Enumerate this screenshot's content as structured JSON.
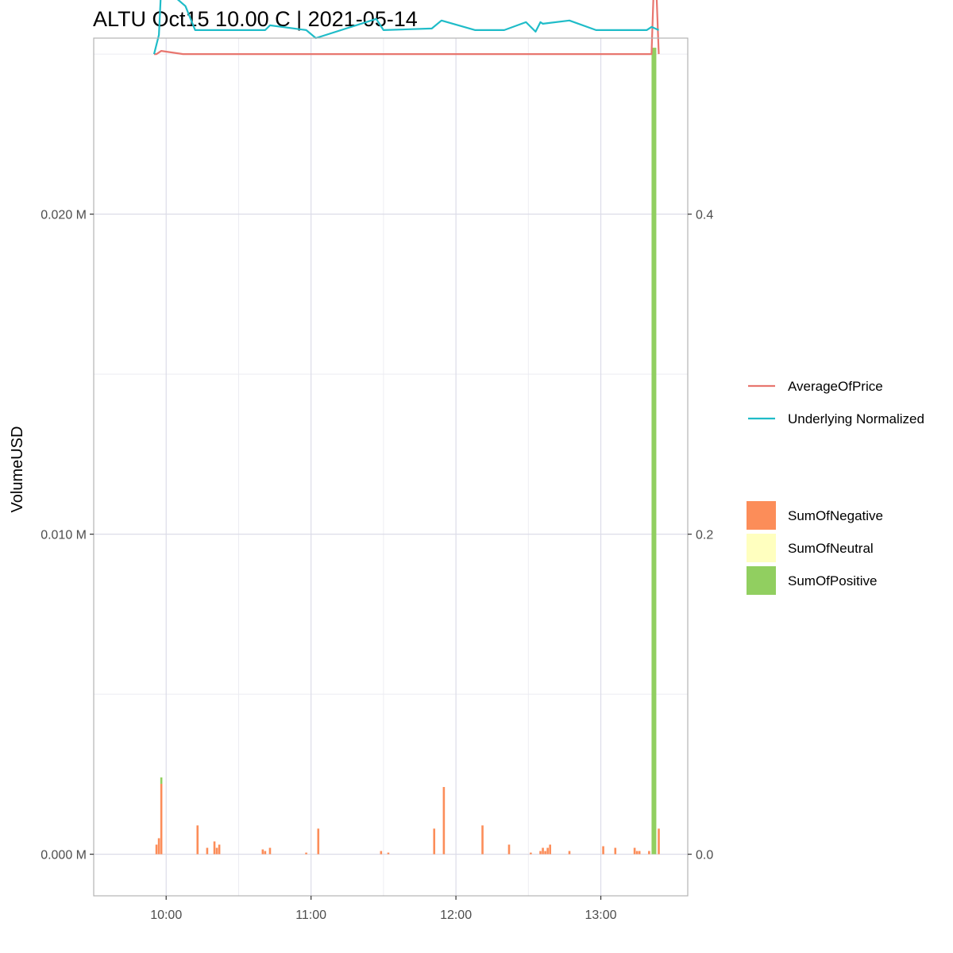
{
  "chart_data": {
    "type": "bar",
    "title": "ALTU Oct15 10.00 C | 2021-05-14",
    "ylabel": "VolumeUSD",
    "y_unit_suffix": " M",
    "xlim": [
      "09:30",
      "13:36"
    ],
    "ylim_left": [
      -0.0013,
      0.0255
    ],
    "ylim_right": [
      -0.026,
      0.51
    ],
    "x_ticks": [
      {
        "x": "10:00",
        "label": "10:00"
      },
      {
        "x": "11:00",
        "label": "11:00"
      },
      {
        "x": "12:00",
        "label": "12:00"
      },
      {
        "x": "13:00",
        "label": "13:00"
      }
    ],
    "y_ticks_left": [
      {
        "value": 0.0,
        "label": "0.000 M"
      },
      {
        "value": 0.01,
        "label": "0.010 M"
      },
      {
        "value": 0.02,
        "label": "0.020 M"
      }
    ],
    "y_ticks_right": [
      {
        "value": 0.0,
        "label": "0.0"
      },
      {
        "value": 0.2,
        "label": "0.2"
      },
      {
        "value": 0.4,
        "label": "0.4"
      }
    ],
    "grid": true,
    "legend_position": "right",
    "colors": {
      "negative": "#fc8d59",
      "neutral": "#ffffbf",
      "positive": "#91cf60",
      "average_price": "#e8766f",
      "underlying": "#1fbcc8",
      "grid_major": "#dcdce8",
      "grid_minor": "#ececf2",
      "panel_border": "#b3b3b3"
    },
    "line_legend": [
      {
        "key": "average_price",
        "label": "AverageOfPrice"
      },
      {
        "key": "underlying",
        "label": "Underlying Normalized"
      }
    ],
    "bar_legend": [
      {
        "key": "negative",
        "label": "SumOfNegative"
      },
      {
        "key": "neutral",
        "label": "SumOfNeutral"
      },
      {
        "key": "positive",
        "label": "SumOfPositive"
      }
    ],
    "bars": {
      "negative": [
        {
          "x": "09:56",
          "value": 0.0003
        },
        {
          "x": "09:57",
          "value": 0.0005
        },
        {
          "x": "09:58",
          "value": 0.0022
        },
        {
          "x": "10:13",
          "value": 0.0009
        },
        {
          "x": "10:17",
          "value": 0.0002
        },
        {
          "x": "10:20",
          "value": 0.0004
        },
        {
          "x": "10:21",
          "value": 0.0002
        },
        {
          "x": "10:22",
          "value": 0.0003
        },
        {
          "x": "10:40",
          "value": 0.00015
        },
        {
          "x": "10:41",
          "value": 0.0001
        },
        {
          "x": "10:43",
          "value": 0.0002
        },
        {
          "x": "10:58",
          "value": 5e-05
        },
        {
          "x": "11:03",
          "value": 0.0008
        },
        {
          "x": "11:29",
          "value": 0.0001
        },
        {
          "x": "11:32",
          "value": 5e-05
        },
        {
          "x": "11:51",
          "value": 0.0008
        },
        {
          "x": "11:55",
          "value": 0.0021
        },
        {
          "x": "12:11",
          "value": 0.0009
        },
        {
          "x": "12:22",
          "value": 0.0003
        },
        {
          "x": "12:31",
          "value": 5e-05
        },
        {
          "x": "12:35",
          "value": 0.0001
        },
        {
          "x": "12:36",
          "value": 0.0002
        },
        {
          "x": "12:37",
          "value": 0.0001
        },
        {
          "x": "12:38",
          "value": 0.0002
        },
        {
          "x": "12:39",
          "value": 0.0003
        },
        {
          "x": "12:47",
          "value": 0.0001
        },
        {
          "x": "13:01",
          "value": 0.00025
        },
        {
          "x": "13:06",
          "value": 0.0002
        },
        {
          "x": "13:14",
          "value": 0.0002
        },
        {
          "x": "13:15",
          "value": 0.0001
        },
        {
          "x": "13:16",
          "value": 0.0001
        },
        {
          "x": "13:20",
          "value": 0.0001
        },
        {
          "x": "13:24",
          "value": 0.0008
        }
      ],
      "neutral": [],
      "positive": [
        {
          "x": "09:58",
          "value": 0.0002
        },
        {
          "x": "13:22",
          "value": 0.0252
        }
      ]
    },
    "series": [
      {
        "key": "average_price",
        "axis": "right",
        "x": [
          "09:55",
          "09:56",
          "09:58",
          "10:07",
          "13:19",
          "13:21",
          "13:22",
          "13:23",
          "13:24"
        ],
        "y": [
          0.5,
          0.5,
          0.502,
          0.5,
          0.5,
          0.5,
          0.545,
          0.54,
          0.5
        ]
      },
      {
        "key": "underlying",
        "axis": "right",
        "x": [
          "09:55",
          "09:57",
          "09:58",
          "10:08",
          "10:12",
          "10:41",
          "10:43",
          "10:58",
          "11:02",
          "11:27",
          "11:30",
          "11:50",
          "11:54",
          "12:08",
          "12:20",
          "12:29",
          "12:33",
          "12:35",
          "12:36",
          "12:47",
          "12:58",
          "13:19",
          "13:21",
          "13:24"
        ],
        "y": [
          0.5,
          0.512,
          0.543,
          0.53,
          0.515,
          0.515,
          0.518,
          0.515,
          0.51,
          0.522,
          0.515,
          0.516,
          0.521,
          0.515,
          0.515,
          0.52,
          0.514,
          0.52,
          0.519,
          0.521,
          0.515,
          0.515,
          0.517,
          0.515
        ]
      }
    ]
  }
}
